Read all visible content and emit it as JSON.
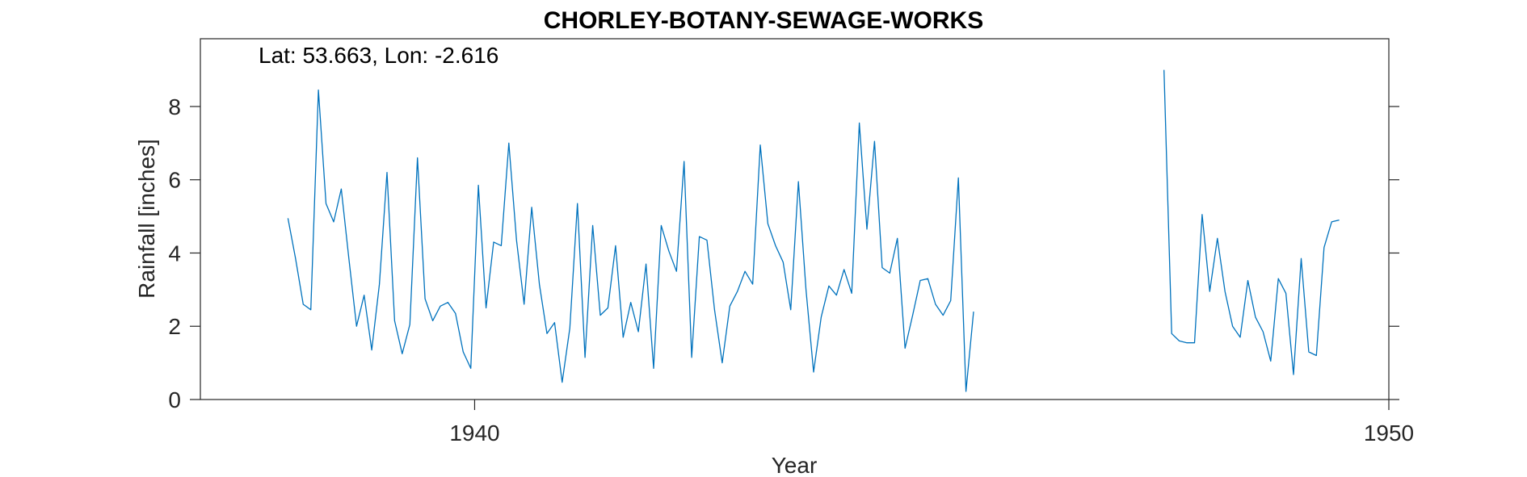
{
  "chart_data": {
    "type": "line",
    "title": "CHORLEY-BOTANY-SEWAGE-WORKS",
    "annotation": "Lat: 53.663, Lon: -2.616",
    "xlabel": "Year",
    "ylabel": "Rainfall [inches]",
    "xlim": [
      1937.0,
      1950.0
    ],
    "ylim": [
      0,
      9.85
    ],
    "x_ticks": [
      1940,
      1950
    ],
    "x_tick_labels": [
      "1940",
      "1950"
    ],
    "y_ticks": [
      0,
      2,
      4,
      6,
      8
    ],
    "y_tick_labels": [
      "0",
      "2",
      "4",
      "6",
      "8"
    ],
    "grid": false,
    "color": "#0072BD",
    "series": [
      {
        "name": "Rainfall",
        "start_year": 1937.958,
        "step": 0.08333,
        "segments": [
          {
            "start_index": 0,
            "values": [
              4.95,
              3.85,
              2.6,
              2.45,
              8.45,
              5.35,
              4.85,
              5.75,
              3.85,
              2.0,
              2.85,
              1.35,
              3.15,
              6.2,
              2.15,
              1.25,
              2.05,
              6.6,
              2.75,
              2.15,
              2.55,
              2.65,
              2.35,
              1.3,
              0.85,
              5.85,
              2.5,
              4.3,
              4.2,
              7.0,
              4.35,
              2.6,
              5.25,
              3.15,
              1.8,
              2.1,
              0.47,
              1.95,
              5.35,
              1.15,
              4.75,
              2.3,
              2.5,
              4.2,
              1.7,
              2.65,
              1.85,
              3.7,
              0.85,
              4.75,
              4.05,
              3.5,
              6.5,
              1.15,
              4.45,
              4.35,
              2.45,
              1.0,
              2.55,
              2.95,
              3.5,
              3.15,
              6.95,
              4.8,
              4.2,
              3.75,
              2.45,
              5.95,
              3.0,
              0.75,
              2.25,
              3.1,
              2.85,
              3.55,
              2.9,
              7.55,
              4.65,
              7.05,
              3.6,
              3.45,
              4.4,
              1.4,
              2.3,
              3.25,
              3.3,
              2.6,
              2.3,
              2.7,
              6.05,
              0.22,
              2.4
            ]
          },
          {
            "start_index": 115,
            "values": [
              9.0,
              1.8,
              1.6,
              1.55,
              1.55,
              5.05,
              2.95,
              4.4,
              2.95,
              2.0,
              1.7,
              3.25,
              2.25,
              1.85,
              1.05,
              3.3,
              2.9,
              0.68,
              3.85,
              1.3,
              1.2,
              4.15,
              4.85,
              4.9
            ]
          }
        ]
      }
    ]
  }
}
